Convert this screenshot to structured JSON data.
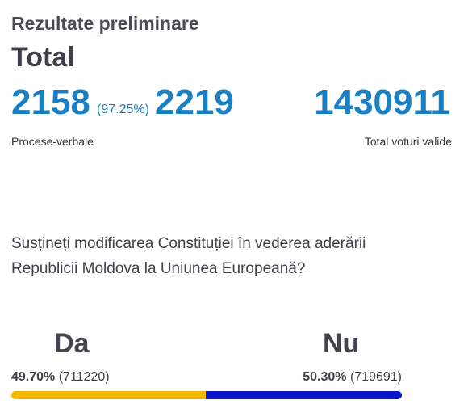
{
  "header": {
    "title": "Rezultate preliminare"
  },
  "summary": {
    "section_title": "Total",
    "processed_reports": "2158",
    "processed_percent": "(97.25%)",
    "total_reports": "2219",
    "reports_label": "Procese-verbale",
    "valid_votes": "1430911",
    "valid_votes_label": "Total voturi valide"
  },
  "referendum": {
    "question": "Susțineți modificarea Constituției în vederea aderării Republicii Moldova la Uniunea Europeană?",
    "options": [
      {
        "label": "Da",
        "percent_text": "49.70%",
        "votes_text": "(711220)",
        "share": 0.497,
        "color": "#f5b800"
      },
      {
        "label": "Nu",
        "percent_text": "50.30%",
        "votes_text": "(719691)",
        "share": 0.503,
        "color": "#0a14c8"
      }
    ]
  }
}
